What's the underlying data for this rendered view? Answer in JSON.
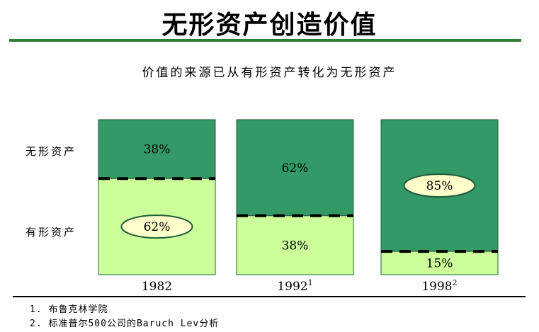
{
  "title": "无形资产创造价值",
  "subtitle": "价值的来源已从有形资产转化为无形资产",
  "row_labels": {
    "intangible": "无形资产",
    "tangible": "有形资产"
  },
  "chart_data": {
    "type": "bar",
    "stacked": true,
    "categories": [
      "1982",
      "1992",
      "1998"
    ],
    "category_superscripts": [
      "",
      "1",
      "2"
    ],
    "series": [
      {
        "name": "无形资产",
        "values": [
          38,
          62,
          85
        ],
        "labels": [
          "38%",
          "62%",
          "85%"
        ],
        "color": "#339966"
      },
      {
        "name": "有形资产",
        "values": [
          62,
          38,
          15
        ],
        "labels": [
          "62%",
          "38%",
          "15%"
        ],
        "color": "#ccff99"
      }
    ],
    "highlighted": [
      {
        "category": "1982",
        "series": "有形资产"
      },
      {
        "category": "1998",
        "series": "无形资产"
      }
    ],
    "ylim": [
      0,
      100
    ]
  },
  "footnotes": [
    "1. 布鲁克林学院",
    "2. 标准普尔500公司的Baruch Lev分析"
  ],
  "colors": {
    "accent": "#2e7d32",
    "intangible": "#339966",
    "tangible": "#ccff99",
    "highlight": "#ffffcc"
  }
}
